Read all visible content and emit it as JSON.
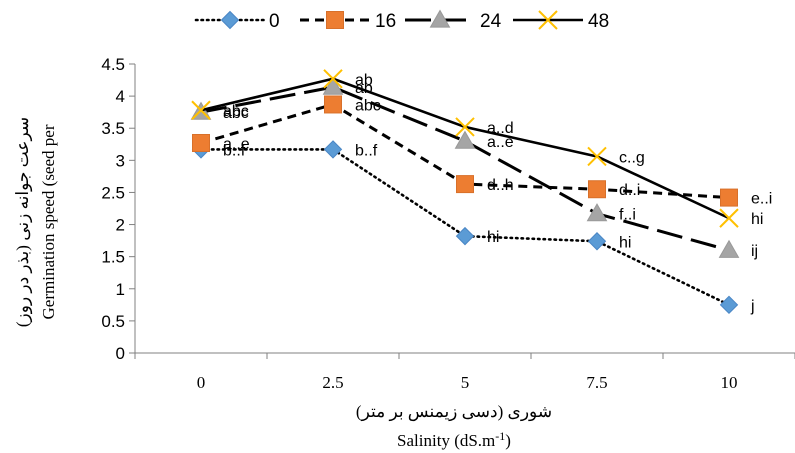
{
  "chart_data": {
    "type": "line",
    "categories": [
      "0",
      "2.5",
      "5",
      "7.5",
      "10"
    ],
    "x": [
      0,
      2.5,
      5,
      7.5,
      10
    ],
    "xlabel_fa": "شوری (دسی زیمنس بر متر)",
    "xlabel_en_base": "Salinity (dS.m",
    "xlabel_en_sup": "-1",
    "xlabel_en_tail": ")",
    "ylabel_fa": "سرعت جوانه زنی (بذر در روز)",
    "ylabel_en": "Germination speed (seed per",
    "ylim": [
      0,
      4.5
    ],
    "yticks": [
      "0",
      "0.5",
      "1",
      "1.5",
      "2",
      "2.5",
      "3",
      "3.5",
      "4",
      "4.5"
    ],
    "grid": false,
    "legend_position": "top",
    "series": [
      {
        "name": "0",
        "values": [
          3.17,
          3.17,
          1.82,
          1.74,
          0.75
        ],
        "labels": [
          "b..f",
          "b..f",
          "hi",
          "hi",
          "j"
        ],
        "color": "#5b9bd5",
        "dash": "dotted",
        "marker": "diamond"
      },
      {
        "name": "16",
        "values": [
          3.27,
          3.87,
          2.63,
          2.55,
          2.42
        ],
        "labels": [
          "a..e",
          "abc",
          "d..h",
          "d..i",
          "e..i"
        ],
        "color": "#ed7d31",
        "dash": "dashed",
        "marker": "square"
      },
      {
        "name": "24",
        "values": [
          3.75,
          4.14,
          3.3,
          2.17,
          1.6
        ],
        "labels": [
          "abc",
          "ab",
          "a..e",
          "f..i",
          "ij"
        ],
        "color": "#a5a5a5",
        "dash": "longdash",
        "marker": "triangle"
      },
      {
        "name": "48",
        "values": [
          3.78,
          4.27,
          3.52,
          3.06,
          2.1
        ],
        "labels": [
          "abc",
          "ab",
          "a..d",
          "c..g",
          "hi"
        ],
        "color": "#ffc000",
        "dash": "solid",
        "marker": "x"
      }
    ]
  }
}
